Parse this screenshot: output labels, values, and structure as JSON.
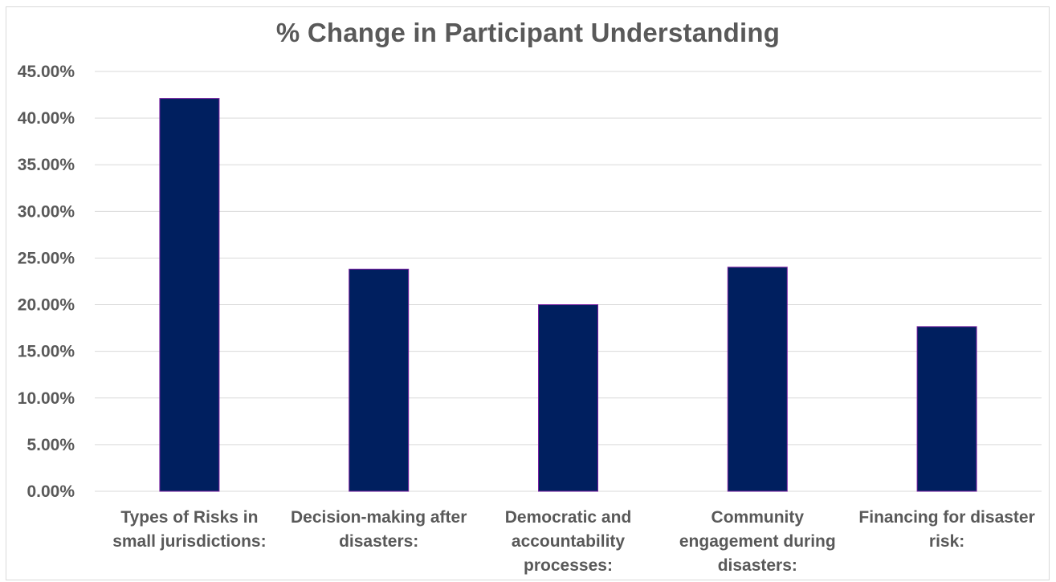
{
  "chart_data": {
    "type": "bar",
    "title": "% Change in Participant Understanding",
    "categories": [
      [
        "Types of Risks in",
        "small jurisdictions:"
      ],
      [
        "Decision-making after",
        "disasters:"
      ],
      [
        "Democratic and",
        "accountability",
        "processes:"
      ],
      [
        "Community",
        "engagement during",
        "disasters:"
      ],
      [
        "Financing for disaster",
        "risk:"
      ]
    ],
    "values": [
      0.4211,
      0.2381,
      0.2,
      0.2402,
      0.1765
    ],
    "ylim": [
      0,
      0.45
    ],
    "yticks": [
      "0.00%",
      "5.00%",
      "10.00%",
      "15.00%",
      "20.00%",
      "25.00%",
      "30.00%",
      "35.00%",
      "40.00%",
      "45.00%"
    ],
    "ytick_values": [
      0,
      0.05,
      0.1,
      0.15,
      0.2,
      0.25,
      0.3,
      0.35,
      0.4,
      0.45
    ],
    "grid": true,
    "bar_color": "#001F5F",
    "bar_edge_color": "#7A1FA2",
    "grid_color": "#D9D9D9",
    "text_color": "#595959",
    "legend": "none"
  }
}
